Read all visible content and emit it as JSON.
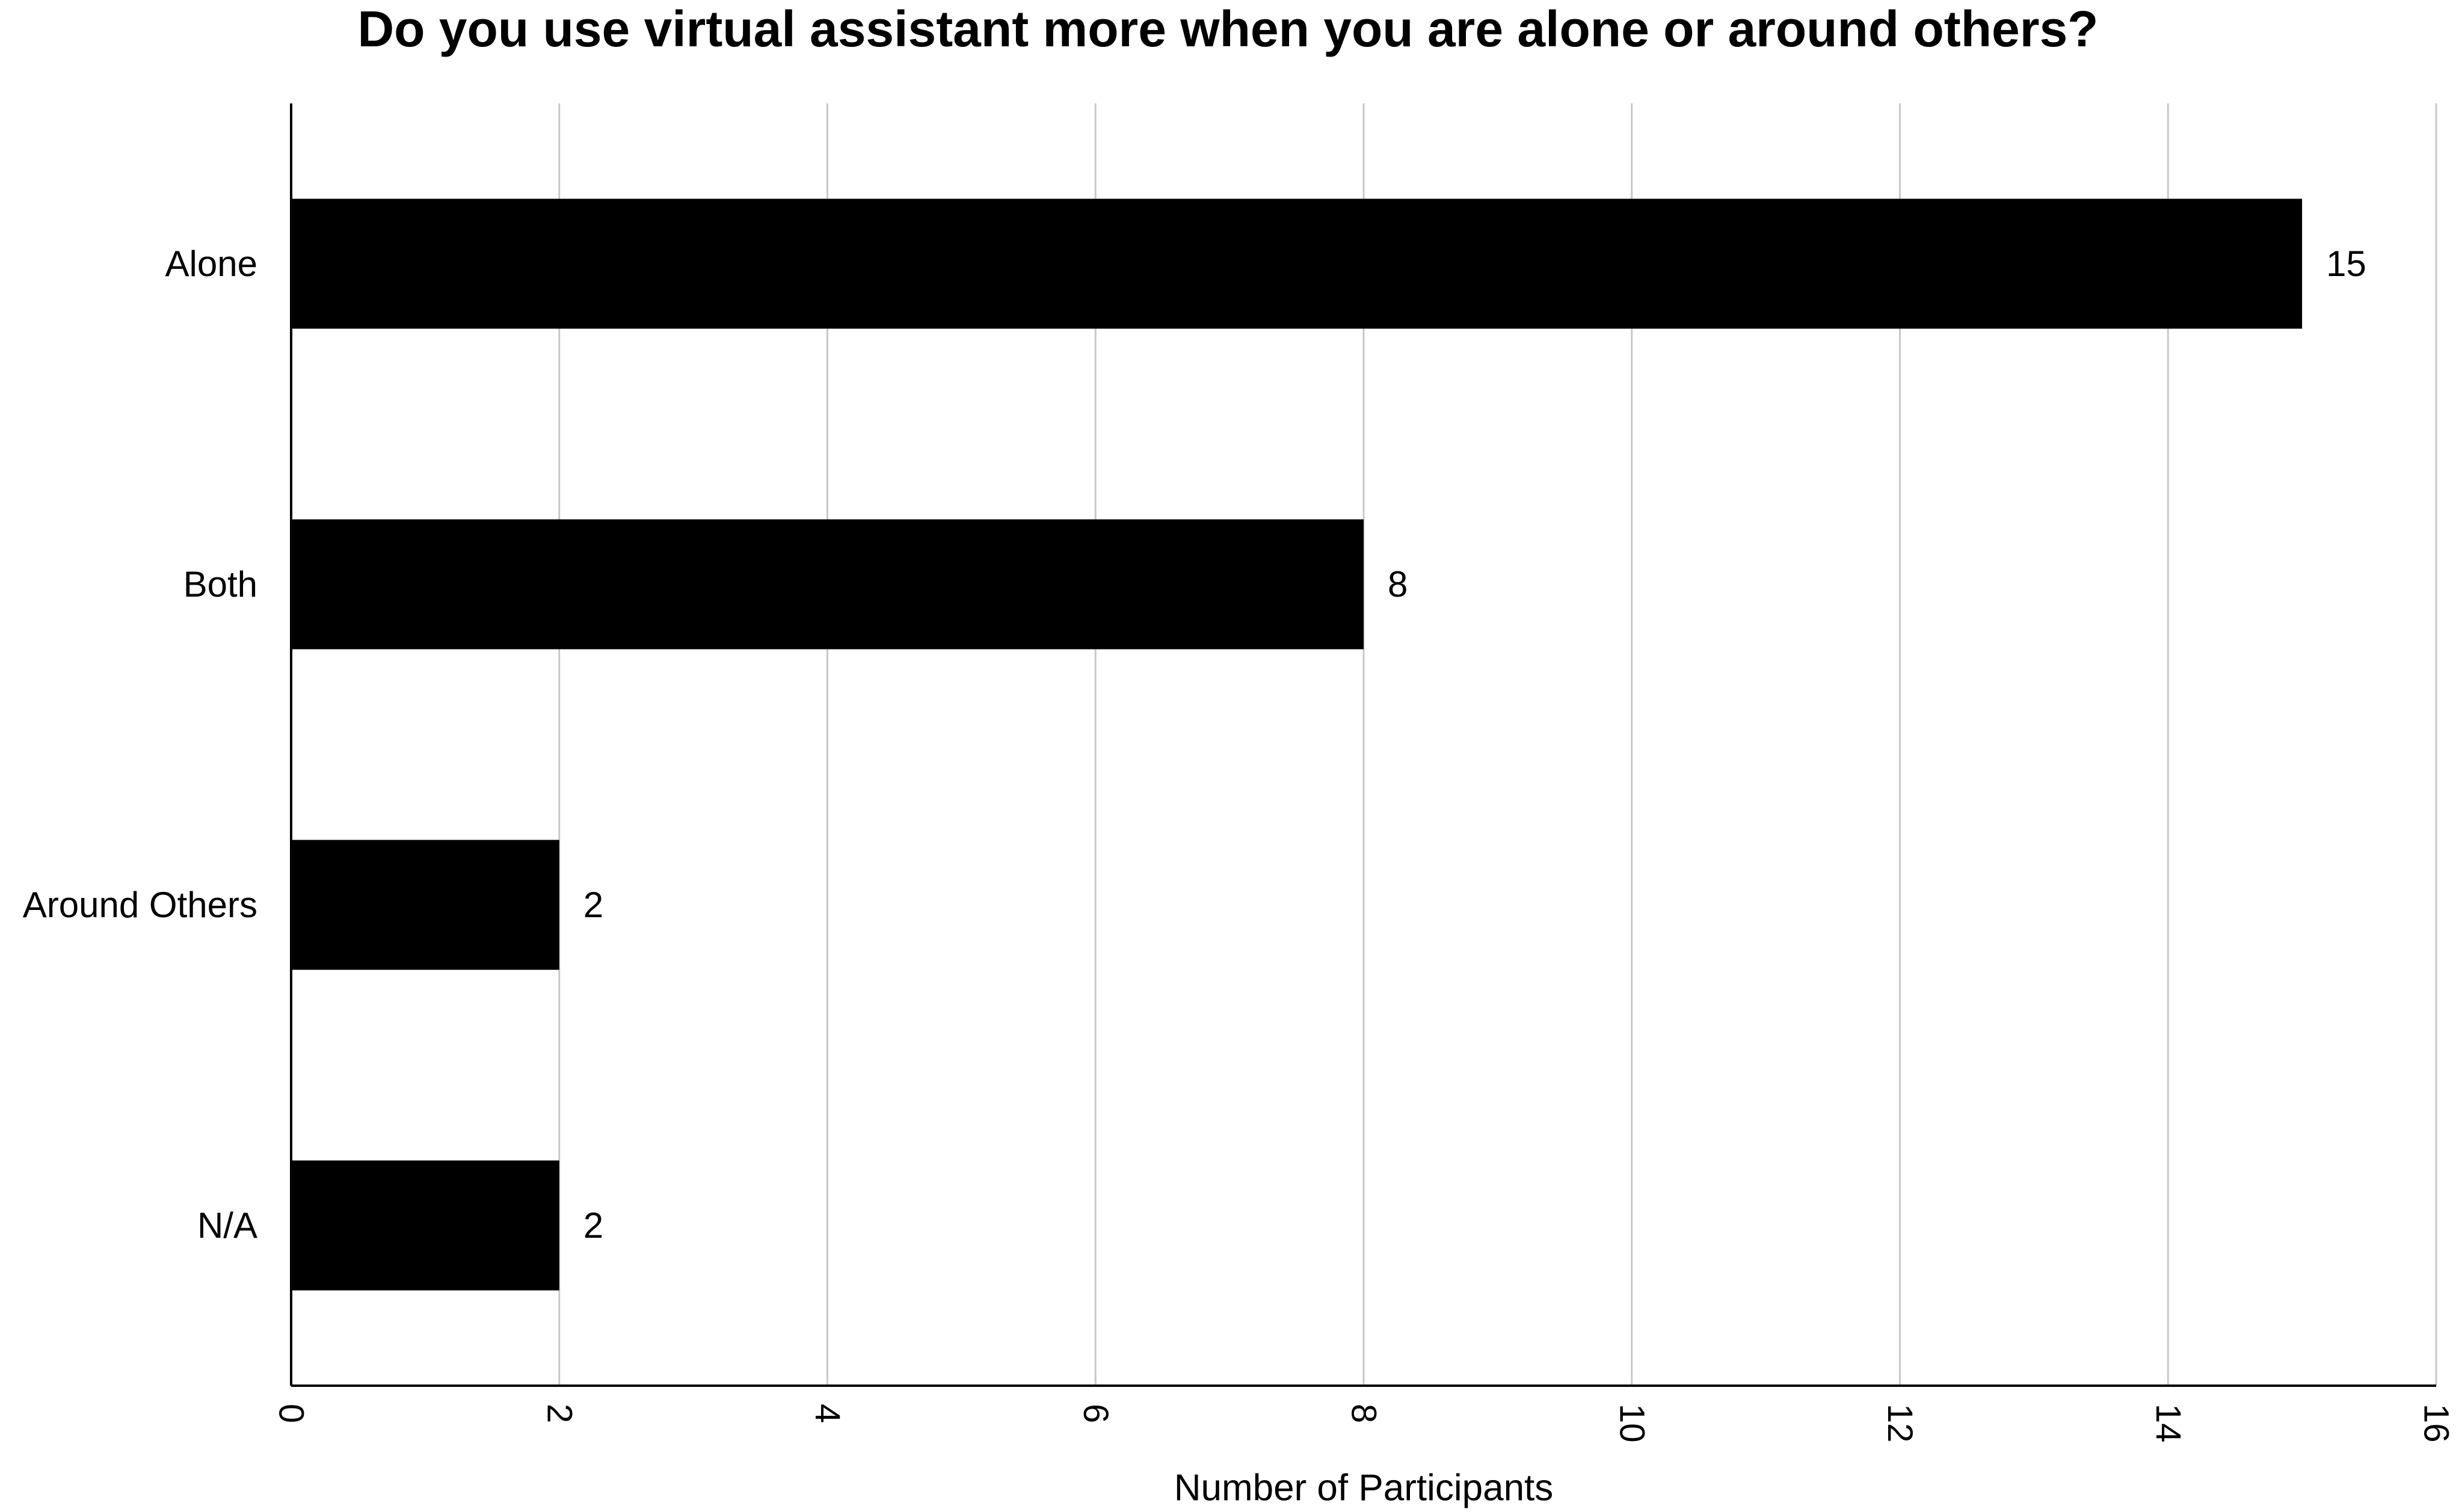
{
  "chart_data": {
    "type": "bar",
    "orientation": "horizontal",
    "title": "Do you use virtual assistant more when you are alone or around others?",
    "categories": [
      "Alone",
      "Both",
      "Around Others",
      "N/A"
    ],
    "values": [
      15,
      8,
      2,
      2
    ],
    "data_labels": [
      "15",
      "8",
      "2",
      "2"
    ],
    "xlabel": "Number of Participants",
    "ylabel": "",
    "xlim": [
      0,
      16
    ],
    "x_ticks": [
      0,
      2,
      4,
      6,
      8,
      10,
      12,
      14,
      16
    ],
    "x_tick_labels": [
      "0",
      "2",
      "4",
      "6",
      "8",
      "10",
      "12",
      "14",
      "16"
    ],
    "grid": "vertical",
    "legend": "none",
    "bar_color": "#000000",
    "grid_color": "#c8c8c8"
  }
}
